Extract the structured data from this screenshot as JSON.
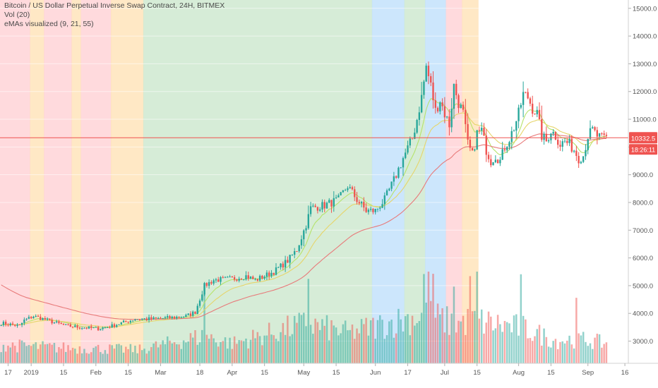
{
  "legend": {
    "title": "Bitcoin / US Dollar Perpetual Inverse Swap Contract, 24H, BITMEX",
    "vol": "Vol (20)",
    "ema": "eMAs visualized (9, 21, 55)"
  },
  "price_badge": "10332.5",
  "countdown_badge": "18:26:11",
  "colors": {
    "bull": "#26a69a",
    "bear": "#ef5350",
    "ema9": "#b6e36b",
    "ema21": "#e6d56a",
    "ema55": "#e87a7a",
    "bg_red": "#ffcdd2",
    "bg_orange": "#ffe0b2",
    "bg_green": "#c8e6c9",
    "bg_blue": "#bbdefb",
    "price_line": "#ef5350"
  },
  "chart_data": {
    "type": "candlestick",
    "x_tick_labels": [
      "17",
      "2019",
      "15",
      "Feb",
      "15",
      "Mar",
      "18",
      "Apr",
      "15",
      "May",
      "15",
      "Jun",
      "17",
      "Jul",
      "15",
      "Aug",
      "15",
      "Sep",
      "16"
    ],
    "y_tick_labels": [
      "15000.0",
      "14000.0",
      "13000.0",
      "12000.0",
      "11000.0",
      "10000.0",
      "9000.0",
      "8000.0",
      "7000.0",
      "6000.0",
      "5000.0",
      "4000.0",
      "3000.0"
    ],
    "y_ticks": [
      15000,
      14000,
      13000,
      12000,
      11000,
      10000,
      9000,
      8000,
      7000,
      6000,
      5000,
      4000,
      3000
    ],
    "ylim": [
      2200,
      15300
    ],
    "current_price": 10332.5,
    "bg_zones": [
      {
        "days": 13,
        "state": "red"
      },
      {
        "days": 6,
        "state": "orange"
      },
      {
        "days": 12,
        "state": "red"
      },
      {
        "days": 4,
        "state": "orange"
      },
      {
        "days": 13,
        "state": "red"
      },
      {
        "days": 14,
        "state": "orange"
      },
      {
        "days": 99,
        "state": "green"
      },
      {
        "days": 14,
        "state": "blue"
      },
      {
        "days": 9,
        "state": "green"
      },
      {
        "days": 9,
        "state": "blue"
      },
      {
        "days": 7,
        "state": "red"
      },
      {
        "days": 7,
        "state": "orange"
      }
    ],
    "price_anchors": [
      [
        0,
        3650
      ],
      [
        8,
        3550
      ],
      [
        10,
        3750
      ],
      [
        14,
        3900
      ],
      [
        18,
        3800
      ],
      [
        22,
        3700
      ],
      [
        28,
        3550
      ],
      [
        34,
        3500
      ],
      [
        42,
        3450
      ],
      [
        48,
        3550
      ],
      [
        52,
        3650
      ],
      [
        58,
        3800
      ],
      [
        66,
        3800
      ],
      [
        74,
        3850
      ],
      [
        80,
        3900
      ],
      [
        84,
        4050
      ],
      [
        88,
        5000
      ],
      [
        92,
        5200
      ],
      [
        100,
        5250
      ],
      [
        106,
        5350
      ],
      [
        110,
        5200
      ],
      [
        118,
        5500
      ],
      [
        124,
        5900
      ],
      [
        128,
        6300
      ],
      [
        132,
        7200
      ],
      [
        134,
        7800
      ],
      [
        140,
        7900
      ],
      [
        146,
        8100
      ],
      [
        150,
        8600
      ],
      [
        154,
        8100
      ],
      [
        158,
        7700
      ],
      [
        162,
        7700
      ],
      [
        166,
        8100
      ],
      [
        170,
        8800
      ],
      [
        174,
        9600
      ],
      [
        178,
        10300
      ],
      [
        180,
        11000
      ],
      [
        182,
        11800
      ],
      [
        184,
        12900
      ],
      [
        186,
        12200
      ],
      [
        188,
        11300
      ],
      [
        190,
        11700
      ],
      [
        192,
        11200
      ],
      [
        194,
        10800
      ],
      [
        196,
        12200
      ],
      [
        198,
        11600
      ],
      [
        200,
        11200
      ],
      [
        202,
        10100
      ],
      [
        204,
        9700
      ],
      [
        206,
        10500
      ],
      [
        208,
        10600
      ],
      [
        210,
        9900
      ],
      [
        212,
        9500
      ],
      [
        214,
        9700
      ],
      [
        216,
        9500
      ],
      [
        218,
        10000
      ],
      [
        220,
        10300
      ],
      [
        222,
        10700
      ],
      [
        224,
        11200
      ],
      [
        226,
        11900
      ],
      [
        228,
        11800
      ],
      [
        230,
        11400
      ],
      [
        232,
        11200
      ],
      [
        234,
        10400
      ],
      [
        236,
        10200
      ],
      [
        238,
        10600
      ],
      [
        240,
        10400
      ],
      [
        242,
        10100
      ],
      [
        244,
        10200
      ],
      [
        246,
        10100
      ],
      [
        248,
        9900
      ],
      [
        250,
        9600
      ],
      [
        252,
        9700
      ],
      [
        254,
        10400
      ],
      [
        256,
        10600
      ],
      [
        258,
        10400
      ],
      [
        260,
        10300
      ],
      [
        262,
        10332
      ]
    ],
    "volume_peaks": [
      [
        0,
        1.2
      ],
      [
        30,
        1.0
      ],
      [
        60,
        0.9
      ],
      [
        88,
        1.8
      ],
      [
        100,
        1.3
      ],
      [
        132,
        2.6
      ],
      [
        150,
        2.0
      ],
      [
        184,
        3.2
      ],
      [
        196,
        2.6
      ],
      [
        205,
        2.8
      ],
      [
        226,
        2.3
      ],
      [
        240,
        1.5
      ],
      [
        250,
        1.6
      ],
      [
        262,
        1.3
      ]
    ],
    "volume_spikes": [
      [
        88,
        1.4
      ],
      [
        133,
        1.3
      ],
      [
        183,
        1.0
      ],
      [
        185,
        1.5
      ],
      [
        187,
        1.1
      ],
      [
        196,
        1.0
      ],
      [
        203,
        1.2
      ],
      [
        206,
        1.3
      ],
      [
        225,
        1.1
      ],
      [
        249,
        0.8
      ]
    ],
    "volume_scale_px": 48,
    "candle_count": 263,
    "future_days": 9,
    "ema_periods": [
      9,
      21,
      55
    ]
  }
}
